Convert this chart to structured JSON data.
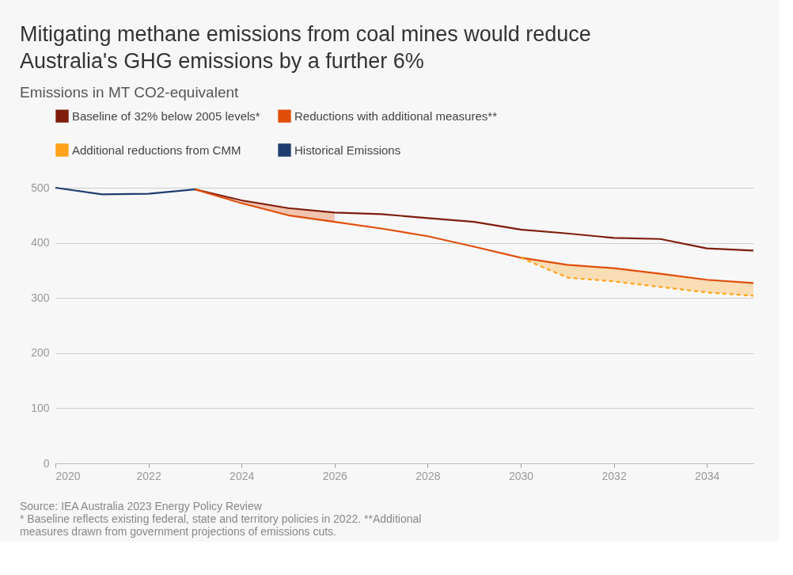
{
  "chart_data": {
    "type": "line",
    "title": "Mitigating methane emissions from coal mines would reduce Australia's GHG emissions by a further 6%",
    "subtitle": "Emissions in MT CO2-equivalent",
    "series": [
      {
        "name": "Baseline of 32% below 2005 levels*",
        "color": "#7f1d0c",
        "x": [
          2023,
          2024,
          2025,
          2026,
          2027,
          2028,
          2029,
          2030,
          2031,
          2032,
          2033,
          2034,
          2035
        ],
        "values": [
          497,
          477,
          463,
          455,
          452,
          445,
          438,
          424,
          417,
          409,
          407,
          390,
          386
        ]
      },
      {
        "name": "Reductions with additional measures**",
        "color": "#e04e0a",
        "x": [
          2023,
          2024,
          2025,
          2026,
          2027,
          2028,
          2029,
          2030,
          2031,
          2032,
          2033,
          2034,
          2035
        ],
        "values": [
          497,
          472,
          450,
          438,
          426,
          412,
          393,
          373,
          360,
          354,
          344,
          333,
          327
        ],
        "lower": [
          null,
          472,
          450,
          438,
          null,
          null,
          null,
          null,
          null,
          null,
          null,
          null,
          null
        ],
        "upper": [
          null,
          477,
          463,
          455,
          null,
          null,
          null,
          null,
          null,
          null,
          null,
          null,
          null
        ]
      },
      {
        "name": "Additional reductions from CMM",
        "color": "#ffa31a",
        "line_style": "dashed",
        "x": [
          2030,
          2031,
          2032,
          2033,
          2034,
          2035
        ],
        "values": [
          373,
          337,
          330,
          320,
          310,
          304
        ],
        "lower": [
          373,
          337,
          330,
          320,
          310,
          304
        ],
        "upper": [
          373,
          360,
          354,
          344,
          333,
          327
        ]
      },
      {
        "name": "Historical Emissions",
        "color": "#1f3e6e",
        "x": [
          2020,
          2021,
          2022,
          2023
        ],
        "values": [
          500,
          488,
          489,
          497
        ]
      }
    ],
    "xlim": [
      2020,
      2035
    ],
    "xticks": [
      2020,
      2022,
      2024,
      2026,
      2028,
      2030,
      2032,
      2034
    ],
    "ylim": [
      0,
      500
    ],
    "yticks": [
      0,
      100,
      200,
      300,
      400,
      500
    ],
    "grid": "y",
    "legend": "top left",
    "marker": "none",
    "line_style": "solid",
    "annotations": [
      "Source: IEA Australia 2023 Energy Policy Review",
      "* Baseline reflects existing federal, state and territory policies in 2022. **Additional",
      "measures drawn from government projections of emissions cuts."
    ]
  }
}
